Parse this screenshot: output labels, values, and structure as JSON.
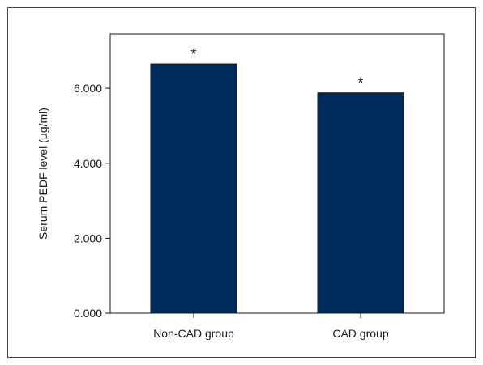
{
  "chart_data": {
    "type": "bar",
    "title": "",
    "xlabel": "",
    "ylabel": "Serum PEDF level (µg/ml)",
    "categories": [
      "Non-CAD group",
      "CAD group"
    ],
    "values": [
      6.65,
      5.88
    ],
    "annotations": [
      "*",
      "*"
    ],
    "yticks": [
      "0.000",
      "2.000",
      "4.000",
      "6.000"
    ],
    "ytick_values": [
      0,
      2,
      4,
      6
    ],
    "ylim": [
      0,
      7.45
    ],
    "grid": false,
    "bar_color": "#002a5c",
    "background": "#ffffff"
  }
}
